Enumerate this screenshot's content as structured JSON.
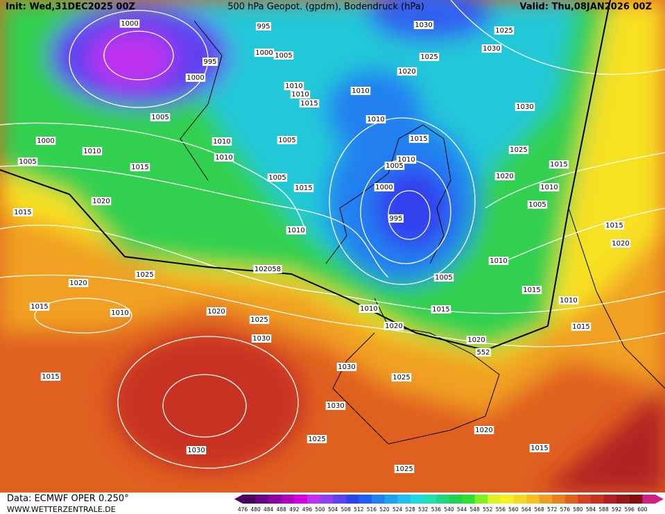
{
  "header": {
    "init": "Init: Wed,31DEC2025 00Z",
    "title": "500 hPa Geopot. (gpdm), Bodendruck (hPa)",
    "valid": "Valid: Thu,08JAN2026 00Z"
  },
  "footer": {
    "data_source": "Data: ECMWF OPER 0.250°",
    "website": "WWW.WETTERZENTRALE.DE"
  },
  "legend": {
    "values": [
      476,
      480,
      484,
      488,
      492,
      496,
      500,
      504,
      508,
      512,
      516,
      520,
      524,
      528,
      532,
      536,
      540,
      544,
      548,
      552,
      556,
      560,
      564,
      568,
      572,
      576,
      580,
      584,
      588,
      592,
      596,
      600
    ],
    "colors": [
      "#4b0060",
      "#6a0080",
      "#8a00a0",
      "#b000c0",
      "#d000e0",
      "#c030f0",
      "#9040f0",
      "#6040f0",
      "#3040f0",
      "#2060f0",
      "#2080f0",
      "#20a0f0",
      "#20c0f0",
      "#20d8e0",
      "#20e0b0",
      "#20d880",
      "#20d050",
      "#30e030",
      "#80f020",
      "#e0f020",
      "#f8f020",
      "#f8d820",
      "#f8c020",
      "#f0a020",
      "#e88020",
      "#e06020",
      "#d84020",
      "#c83020",
      "#b02020",
      "#981818",
      "#801010",
      "#d02080"
    ]
  },
  "isobar_labels": [
    1000,
    995,
    1030,
    1025,
    1000,
    1005,
    995,
    1025,
    1030,
    1000,
    1020,
    1010,
    1010,
    1010,
    1015,
    1030,
    1005,
    1010,
    1000,
    1010,
    1005,
    1015,
    1025,
    1010,
    1010,
    1010,
    1005,
    1005,
    1015,
    1015,
    1020,
    1005,
    1015,
    1000,
    1010,
    1020,
    1005,
    1015,
    995,
    1010,
    1015,
    1020,
    1010,
    102058,
    1025,
    1020,
    1005,
    1015,
    1015,
    1010,
    1020,
    1010,
    1015,
    1010,
    1025,
    1015,
    1020,
    1030,
    1020,
    552,
    1030,
    1015,
    1025,
    1030,
    1020,
    1025,
    1030,
    1015,
    1025
  ]
}
